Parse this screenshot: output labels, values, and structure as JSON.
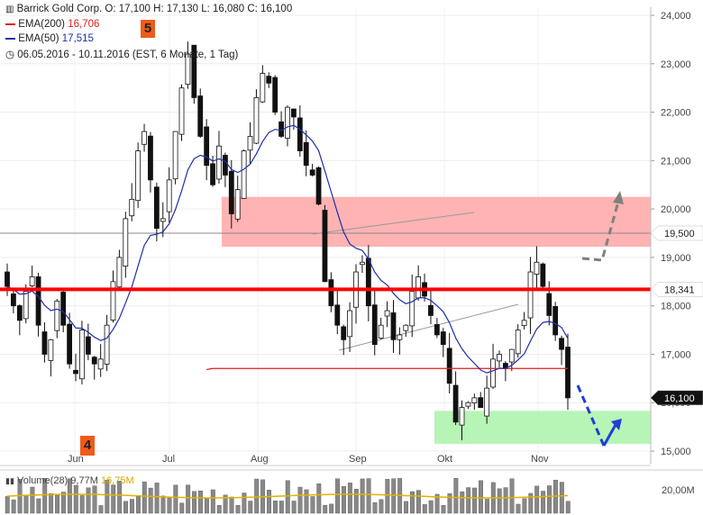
{
  "header": {
    "symbol_line": "Barrick Gold Corp.   O: 17,100  H: 17,130  L: 16,080  C: 16,100",
    "ema200_label": "EMA(200)",
    "ema200_value": "16,706",
    "ema50_label": "EMA(50)",
    "ema50_value": "17,515",
    "period_line": "06.05.2016 - 10.11.2016  (EST, 6 Monate, 1 Tag)",
    "annotation_5": "5",
    "annotation_4": "4"
  },
  "volume_panel": {
    "label": "Volume(28)",
    "value1": "9,77M",
    "value2": "16,75M",
    "axis_label": "20,00M"
  },
  "price_tags": {
    "level_19500": "19,500",
    "level_18341": "18,341",
    "last_close": "16,100"
  },
  "colors": {
    "ema200": "#e31c1c",
    "ema50": "#1f2fa8",
    "resistance_line": "#ff0000",
    "resistance_zone": "#ffb3b3",
    "support_zone": "#b6f5b6",
    "down_arrow": "#1c3fd6",
    "up_arrow": "#808080",
    "annotation_box": "#f05a1a",
    "volume_avg": "#e0b400"
  },
  "chart_data": {
    "type": "candlestick",
    "ylim": [
      15.0,
      24.3
    ],
    "yticks": [
      "15,000",
      "16,000",
      "17,000",
      "18,000",
      "19,000",
      "20,000",
      "21,000",
      "22,000",
      "23,000",
      "24,000"
    ],
    "x_labels": [
      "Jun",
      "Jul",
      "Aug",
      "Sep",
      "Okt",
      "Nov"
    ],
    "horizontal_levels": [
      19.5,
      18.341
    ],
    "zones": [
      {
        "name": "resistance",
        "from": 19.22,
        "to": 20.25
      },
      {
        "name": "support",
        "from": 15.15,
        "to": 15.83
      }
    ],
    "last": {
      "open": 17.1,
      "high": 17.13,
      "low": 16.08,
      "close": 16.1
    },
    "ema200_end": 16.706,
    "ema50_end": 17.515,
    "close_path": [
      18.4,
      18.0,
      17.7,
      18.3,
      18.6,
      17.6,
      17.0,
      17.3,
      18.1,
      17.6,
      16.8,
      16.6,
      17.5,
      17.0,
      16.8,
      16.9,
      17.6,
      18.5,
      19.0,
      19.8,
      20.2,
      21.2,
      21.6,
      20.6,
      19.6,
      19.8,
      20.6,
      21.6,
      22.5,
      23.2,
      22.3,
      21.5,
      20.9,
      20.5,
      21.3,
      20.7,
      19.9,
      20.4,
      21.2,
      21.5,
      22.3,
      22.8,
      22.6,
      22.0,
      21.5,
      22.1,
      21.9,
      21.2,
      20.9,
      20.7,
      20.1,
      18.5,
      18.0,
      17.6,
      17.3,
      17.9,
      18.7,
      18.9,
      18.0,
      17.2,
      17.6,
      17.9,
      17.3,
      17.4,
      17.6,
      18.3,
      18.6,
      18.2,
      17.8,
      17.4,
      17.2,
      16.4,
      15.6,
      15.9,
      16.0,
      16.1,
      15.9,
      16.3,
      16.9,
      17.0,
      16.7,
      17.1,
      17.5,
      17.7,
      18.7,
      18.9,
      18.4,
      17.8,
      17.4,
      17.1,
      16.1
    ]
  }
}
